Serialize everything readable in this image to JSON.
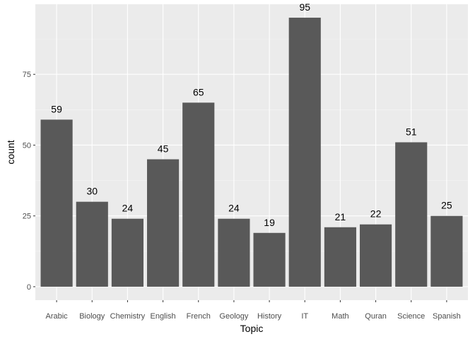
{
  "chart_data": {
    "type": "bar",
    "categories": [
      "Arabic",
      "Biology",
      "Chemistry",
      "English",
      "French",
      "Geology",
      "History",
      "IT",
      "Math",
      "Quran",
      "Science",
      "Spanish"
    ],
    "values": [
      59,
      30,
      24,
      45,
      65,
      24,
      19,
      95,
      21,
      22,
      51,
      25
    ],
    "data_labels": [
      "59",
      "30",
      "24",
      "45",
      "65",
      "24",
      "19",
      "95",
      "21",
      "22",
      "51",
      "25"
    ],
    "title": "",
    "xlabel": "Topic",
    "ylabel": "count",
    "ylim": [
      -4.75,
      99.75
    ],
    "yticks": [
      0,
      25,
      50,
      75
    ],
    "ytick_labels": [
      "0",
      "25",
      "50",
      "75"
    ],
    "grid": true,
    "legend": "none"
  },
  "colors": {
    "panel_background": "#ebebeb",
    "grid_major": "#ffffff",
    "grid_minor": "#f5f5f5",
    "bar_fill": "#595959",
    "tick_text": "#4d4d4d",
    "tick_mark": "#333333"
  }
}
